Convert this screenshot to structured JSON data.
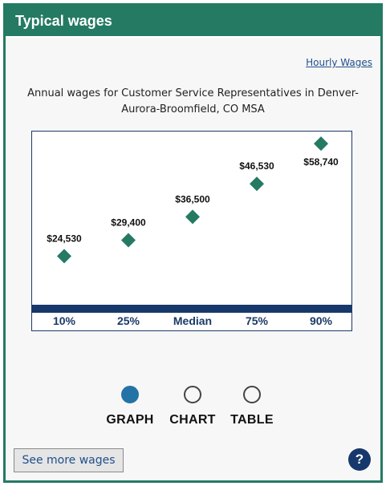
{
  "header": {
    "title": "Typical wages"
  },
  "links": {
    "hourly_wages": "Hourly Wages"
  },
  "caption": "Annual wages for Customer Service Representatives in Denver-Aurora-Broomfield, CO MSA",
  "colors": {
    "accent": "#257a63",
    "marker": "#257a63",
    "axis_band": "#17386b",
    "radio_selected": "#2373a6"
  },
  "chart_data": {
    "type": "scatter",
    "categories": [
      "10%",
      "25%",
      "Median",
      "75%",
      "90%"
    ],
    "values": [
      24530,
      29400,
      36500,
      46530,
      58740
    ],
    "value_labels": [
      "$24,530",
      "$29,400",
      "$36,500",
      "$46,530",
      "$58,740"
    ],
    "grid": false,
    "marker": "diamond"
  },
  "view_toggle": {
    "options": [
      {
        "label": "GRAPH",
        "selected": true
      },
      {
        "label": "CHART",
        "selected": false
      },
      {
        "label": "TABLE",
        "selected": false
      }
    ]
  },
  "buttons": {
    "see_more": "See more wages",
    "help": "?"
  }
}
